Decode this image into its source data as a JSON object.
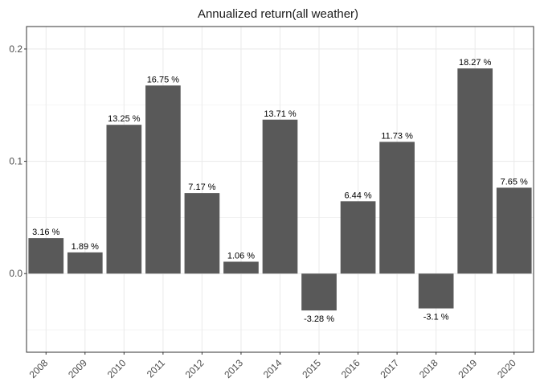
{
  "chart_data": {
    "type": "bar",
    "title": "Annualized return(all weather)",
    "xlabel": "",
    "ylabel": "",
    "categories": [
      "2008",
      "2009",
      "2010",
      "2011",
      "2012",
      "2013",
      "2014",
      "2015",
      "2016",
      "2017",
      "2018",
      "2019",
      "2020"
    ],
    "values": [
      0.0316,
      0.0189,
      0.1325,
      0.1675,
      0.0717,
      0.0106,
      0.1371,
      -0.0328,
      0.0644,
      0.1173,
      -0.031,
      0.1827,
      0.0765
    ],
    "data_labels": [
      "3.16 %",
      "1.89 %",
      "13.25 %",
      "16.75 %",
      "7.17 %",
      "1.06 %",
      "13.71 %",
      "-3.28 %",
      "6.44 %",
      "11.73 %",
      "-3.1 %",
      "18.27 %",
      "7.65 %"
    ],
    "ylim": [
      -0.07,
      0.22
    ],
    "yticks": [
      0.0,
      0.1,
      0.2
    ],
    "ytick_labels": [
      "0.0",
      "0.1",
      "0.2"
    ],
    "grid": true,
    "bar_color": "#595959",
    "grid_color": "#ebebeb",
    "border_color": "#333333"
  }
}
